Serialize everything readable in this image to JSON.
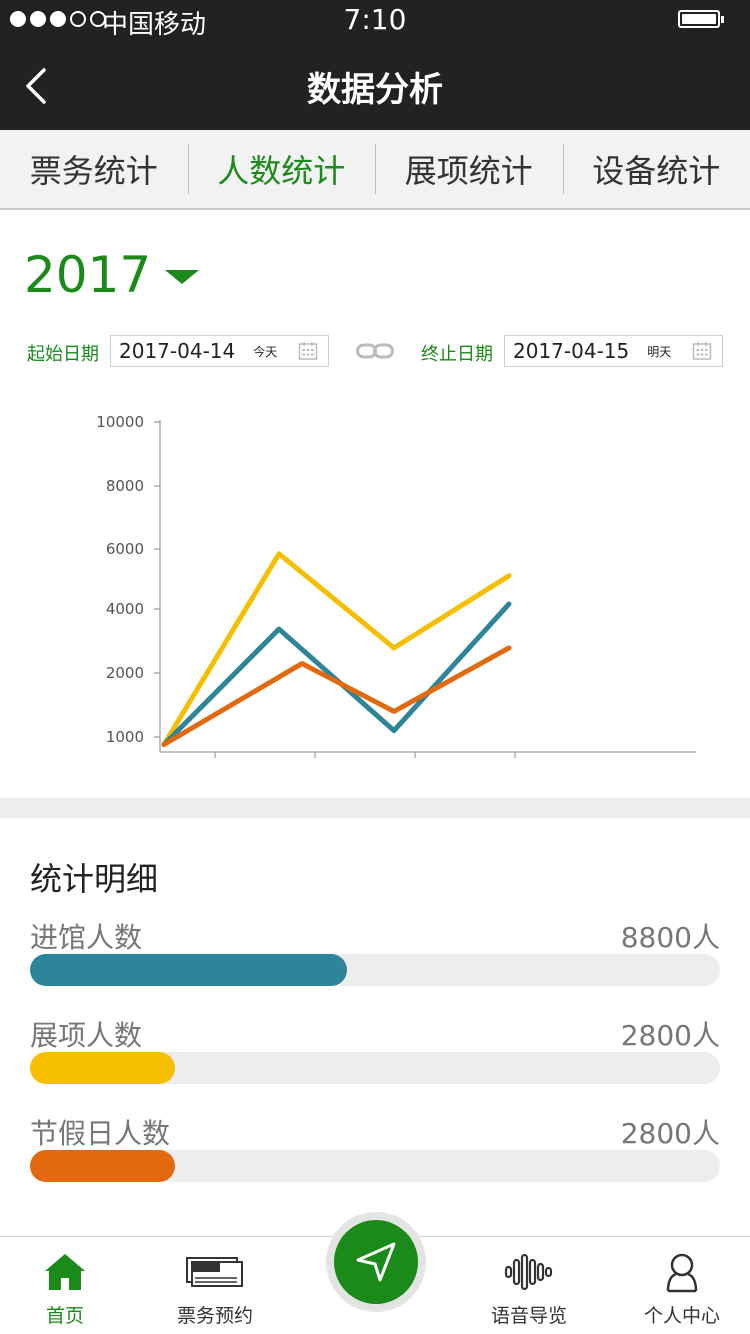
{
  "status": {
    "carrier": "中国移动",
    "time": "7:10"
  },
  "nav": {
    "title": "数据分析"
  },
  "tabs": [
    {
      "label": "票务统计",
      "active": false
    },
    {
      "label": "人数统计",
      "active": true
    },
    {
      "label": "展项统计",
      "active": false
    },
    {
      "label": "设备统计",
      "active": false
    }
  ],
  "year": "2017",
  "dates": {
    "start_label": "起始日期",
    "start_value": "2017-04-14",
    "start_rel": "今天",
    "end_label": "终止日期",
    "end_value": "2017-04-15",
    "end_rel": "明天"
  },
  "colors": {
    "accent": "#1a8a1a",
    "teal": "#2e8499",
    "yellow": "#f5bf00",
    "orange": "#e2690f"
  },
  "chart_data": {
    "type": "line",
    "yticks": [
      "10000",
      "8000",
      "6000",
      "4000",
      "2000",
      "1000"
    ],
    "series": [
      {
        "color": "#f5bf00",
        "x": [
          0,
          1,
          2,
          3
        ],
        "values": [
          500,
          5800,
          2800,
          5100
        ]
      },
      {
        "color": "#2e8499",
        "x": [
          0,
          1,
          2,
          3
        ],
        "values": [
          500,
          3400,
          1100,
          4200
        ]
      },
      {
        "color": "#e2690f",
        "x": [
          0,
          1.2,
          2,
          3
        ],
        "values": [
          500,
          2300,
          1400,
          2800
        ]
      }
    ]
  },
  "details": {
    "title": "统计明细",
    "items": [
      {
        "label": "进馆人数",
        "value": "8800人",
        "fraction": 0.46,
        "color": "#2e8499"
      },
      {
        "label": "展项人数",
        "value": "2800人",
        "fraction": 0.21,
        "color": "#f5bf00"
      },
      {
        "label": "节假日人数",
        "value": "2800人",
        "fraction": 0.21,
        "color": "#e2690f"
      }
    ]
  },
  "bottom_nav": [
    {
      "label": "首页",
      "icon": "home-icon",
      "active": true
    },
    {
      "label": "票务预约",
      "icon": "ticket-icon",
      "active": false
    },
    {
      "label": "语音导览",
      "icon": "audio-wave-icon",
      "active": false
    },
    {
      "label": "个人中心",
      "icon": "user-icon",
      "active": false
    }
  ]
}
